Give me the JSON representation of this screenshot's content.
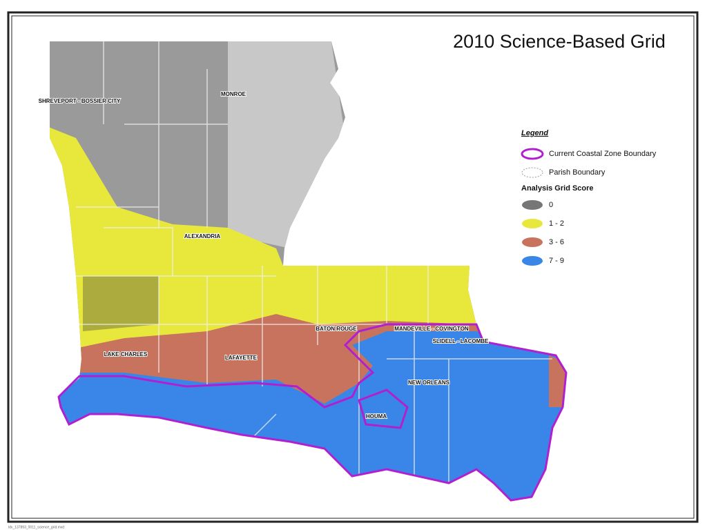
{
  "title": "2010 Science-Based Grid",
  "cities": [
    "SHREVEPORT - BOSSIER CITY",
    "MONROE",
    "ALEXANDRIA",
    "BATON ROUGE",
    "MANDEVILLE - COVINGTON",
    "SLIDELL - LACOMBE",
    "LAKE CHARLES",
    "LAFAYETTE",
    "NEW ORLEANS",
    "HOUMA"
  ],
  "legend": {
    "title": "Legend",
    "boundaries": [
      "Current Coastal Zone Boundary",
      "Parish Boundary"
    ],
    "score_title": "Analysis Grid Score",
    "scores": [
      {
        "label": "0",
        "color": "#767676"
      },
      {
        "label": "1 - 2",
        "color": "#e8e83c"
      },
      {
        "label": "3 - 6",
        "color": "#c8735e"
      },
      {
        "label": "7 - 9",
        "color": "#3a86e8"
      }
    ]
  },
  "footer": "ldv_137893_0011_science_grid.mxd"
}
